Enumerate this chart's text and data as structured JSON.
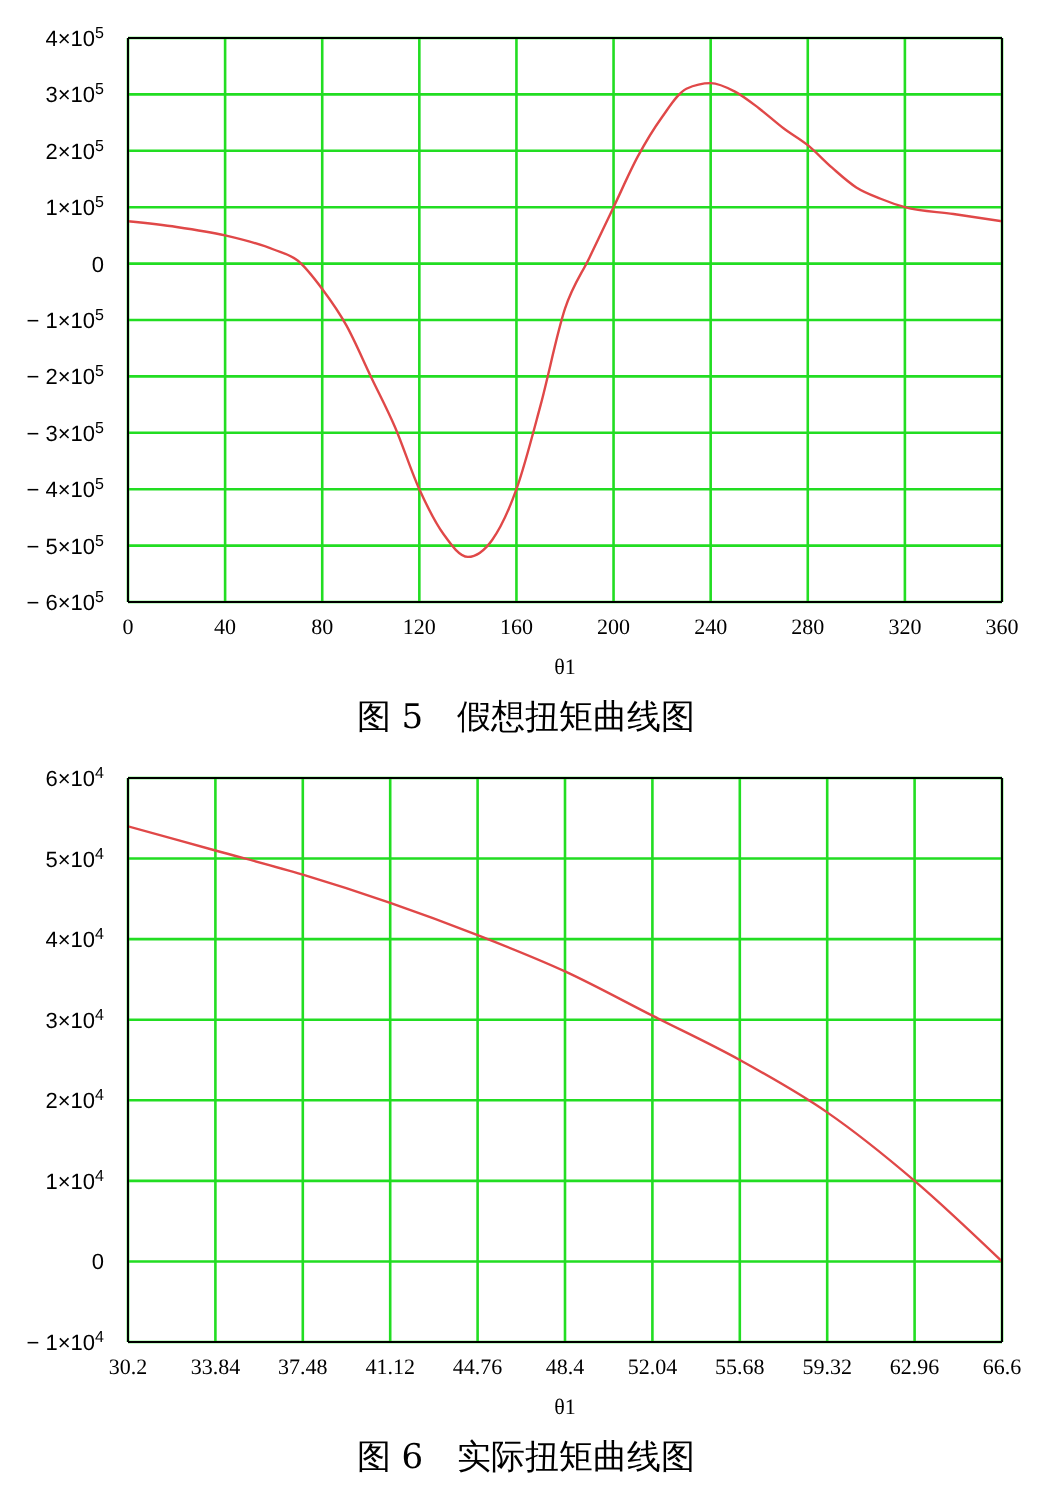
{
  "chart_data": [
    {
      "type": "line",
      "title": "图 5　假想扭矩曲线图",
      "xlabel": "θ1",
      "grid": true,
      "marker": "none",
      "line_style": "solid",
      "x": [
        0,
        20,
        40,
        60,
        70,
        80,
        90,
        100,
        110,
        120,
        130,
        140,
        150,
        160,
        170,
        180,
        190,
        200,
        210,
        220,
        230,
        240,
        250,
        260,
        270,
        280,
        290,
        300,
        310,
        320,
        340,
        360
      ],
      "series": [
        {
          "color": "#e04848",
          "values": [
            75000,
            65000,
            50000,
            25000,
            5000,
            -45000,
            -110000,
            -200000,
            -290000,
            -400000,
            -480000,
            -520000,
            -490000,
            -400000,
            -250000,
            -80000,
            10000,
            100000,
            190000,
            260000,
            310000,
            320000,
            305000,
            275000,
            240000,
            210000,
            170000,
            135000,
            115000,
            100000,
            88000,
            75000
          ]
        }
      ],
      "xlim": [
        0,
        360
      ],
      "xticks": [
        0,
        40,
        80,
        120,
        160,
        200,
        240,
        280,
        320,
        360
      ],
      "ylim": [
        -600000,
        400000
      ],
      "yticks": [
        {
          "value": 400000,
          "label": "4×10$^{5}$"
        },
        {
          "value": 300000,
          "label": "3×10$^{5}$"
        },
        {
          "value": 200000,
          "label": "2×10$^{5}$"
        },
        {
          "value": 100000,
          "label": "1×10$^{5}$"
        },
        0,
        {
          "value": -100000,
          "label": "− 1×10$^{5}$"
        },
        {
          "value": -200000,
          "label": "− 2×10$^{5}$"
        },
        {
          "value": -300000,
          "label": "− 3×10$^{5}$"
        },
        {
          "value": -400000,
          "label": "− 4×10$^{5}$"
        },
        {
          "value": -500000,
          "label": "− 5×10$^{5}$"
        },
        {
          "value": -600000,
          "label": "− 6×10$^{5}$"
        }
      ]
    },
    {
      "type": "line",
      "title": "图 6　实际扭矩曲线图",
      "xlabel": "θ1",
      "grid": true,
      "marker": "none",
      "line_style": "solid",
      "x": [
        30.2,
        33.84,
        37.48,
        41.12,
        44.76,
        48.4,
        52.04,
        55.68,
        59.32,
        62.96,
        66.6
      ],
      "series": [
        {
          "color": "#e04848",
          "values": [
            54000,
            51000,
            48000,
            44500,
            40500,
            36000,
            30500,
            25000,
            18500,
            10000,
            0
          ]
        }
      ],
      "xlim": [
        30.2,
        66.6
      ],
      "xticks": [
        30.2,
        33.84,
        37.48,
        41.12,
        44.76,
        48.4,
        52.04,
        55.68,
        59.32,
        62.96,
        66.6
      ],
      "ylim": [
        -10000,
        60000
      ],
      "yticks": [
        {
          "value": 60000,
          "label": "6×10$^{4}$"
        },
        {
          "value": 50000,
          "label": "5×10$^{4}$"
        },
        {
          "value": 40000,
          "label": "4×10$^{4}$"
        },
        {
          "value": 30000,
          "label": "3×10$^{4}$"
        },
        {
          "value": 20000,
          "label": "2×10$^{4}$"
        },
        {
          "value": 10000,
          "label": "1×10$^{4}$"
        },
        0,
        {
          "value": -10000,
          "label": "− 1×10$^{4}$"
        }
      ]
    }
  ]
}
